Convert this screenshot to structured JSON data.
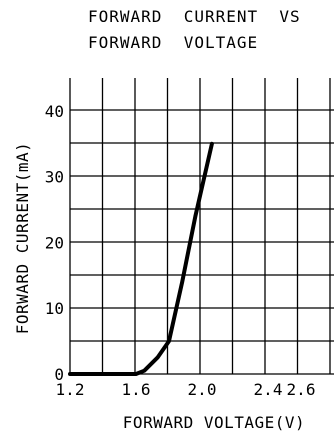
{
  "chart_data": {
    "type": "line",
    "title": [
      "FORWARD  CURRENT  VS",
      "FORWARD  VOLTAGE"
    ],
    "xlabel": "FORWARD  VOLTAGE(V)",
    "ylabel": "FORWARD  CURRENT(mA)",
    "xlim": [
      1.2,
      2.8
    ],
    "ylim": [
      0,
      45
    ],
    "grid": true,
    "x_ticks": [
      "1.2",
      "1.6",
      "2.0",
      "2.4",
      "2.6"
    ],
    "x_tick_values": [
      1.2,
      1.6,
      2.0,
      2.4,
      2.6
    ],
    "y_ticks": [
      "0",
      "10",
      "20",
      "30",
      "40"
    ],
    "y_tick_values": [
      0,
      10,
      20,
      30,
      40
    ],
    "series": [
      {
        "x": [
          1.2,
          1.3,
          1.4,
          1.5,
          1.6,
          1.65,
          1.73,
          1.8,
          1.88,
          1.96,
          2.06
        ],
        "y": [
          0,
          0,
          0,
          0,
          0,
          0.5,
          2.5,
          5,
          14,
          24,
          35
        ]
      }
    ]
  },
  "colors": {
    "line": "#000000",
    "grid": "#000000"
  }
}
